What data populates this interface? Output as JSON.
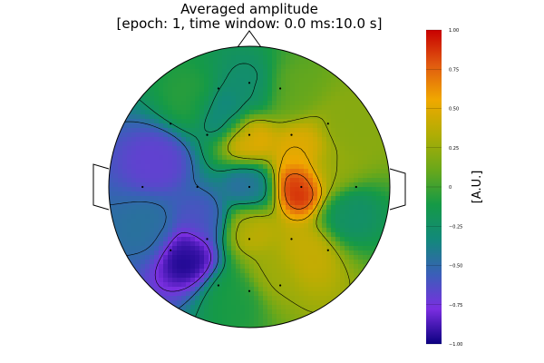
{
  "chart_data": {
    "type": "heatmap",
    "title": "Averaged amplitude",
    "subtitle": "[epoch: 1, time window: 0.0 ms:10.0 s]",
    "colorbar": {
      "label": "[A.U.]",
      "ticks": [
        "1.00",
        "0.75",
        "0.50",
        "0.25",
        "0",
        "−0.25",
        "−0.50",
        "−0.75",
        "−1.00"
      ],
      "range": [
        -1.0,
        1.0
      ],
      "colormap": [
        "#0b0080",
        "#7a2ee0",
        "#3a5fb8",
        "#12897a",
        "#159a46",
        "#6aa81a",
        "#b0ad04",
        "#f0a800",
        "#e05a10",
        "#c80000"
      ]
    },
    "background_color": "#ffffff",
    "outline_color": "#000000",
    "sources": [
      {
        "x": -0.18,
        "y": 0.52,
        "v": -0.42
      },
      {
        "x": 0.03,
        "y": 0.7,
        "v": -0.3
      },
      {
        "x": 0.0,
        "y": 0.34,
        "v": 0.58
      },
      {
        "x": 0.37,
        "y": 0.25,
        "v": 0.52
      },
      {
        "x": 0.36,
        "y": 0.0,
        "v": 1.0
      },
      {
        "x": 0.58,
        "y": 0.12,
        "v": 0.22
      },
      {
        "x": 0.7,
        "y": -0.18,
        "v": -0.28
      },
      {
        "x": 0.0,
        "y": 0.0,
        "v": -0.55
      },
      {
        "x": -0.65,
        "y": 0.18,
        "v": -0.7
      },
      {
        "x": -0.32,
        "y": -0.24,
        "v": -0.62
      },
      {
        "x": -0.44,
        "y": -0.48,
        "v": -1.0
      },
      {
        "x": 0.0,
        "y": -0.3,
        "v": 0.42
      },
      {
        "x": 0.4,
        "y": -0.48,
        "v": 0.42
      },
      {
        "x": 0.18,
        "y": -0.6,
        "v": 0.28
      },
      {
        "x": -0.4,
        "y": 0.62,
        "v": -0.05
      },
      {
        "x": 0.28,
        "y": 0.68,
        "v": 0.1
      },
      {
        "x": -0.1,
        "y": -0.78,
        "v": -0.1
      },
      {
        "x": 0.7,
        "y": 0.4,
        "v": 0.2
      },
      {
        "x": -0.7,
        "y": -0.3,
        "v": -0.45
      }
    ],
    "electrodes": [
      {
        "x": -0.22,
        "y": 0.7
      },
      {
        "x": 0.0,
        "y": 0.74
      },
      {
        "x": 0.22,
        "y": 0.7
      },
      {
        "x": -0.56,
        "y": 0.45
      },
      {
        "x": -0.3,
        "y": 0.37
      },
      {
        "x": 0.0,
        "y": 0.37
      },
      {
        "x": 0.3,
        "y": 0.37
      },
      {
        "x": 0.56,
        "y": 0.45
      },
      {
        "x": -0.76,
        "y": 0.0
      },
      {
        "x": -0.37,
        "y": 0.0
      },
      {
        "x": 0.0,
        "y": 0.0
      },
      {
        "x": 0.37,
        "y": 0.0
      },
      {
        "x": 0.76,
        "y": 0.0
      },
      {
        "x": -0.56,
        "y": -0.45
      },
      {
        "x": -0.3,
        "y": -0.37
      },
      {
        "x": 0.0,
        "y": -0.37
      },
      {
        "x": 0.3,
        "y": -0.37
      },
      {
        "x": 0.56,
        "y": -0.45
      },
      {
        "x": -0.22,
        "y": -0.7
      },
      {
        "x": 0.0,
        "y": -0.74
      },
      {
        "x": 0.22,
        "y": -0.7
      }
    ]
  }
}
